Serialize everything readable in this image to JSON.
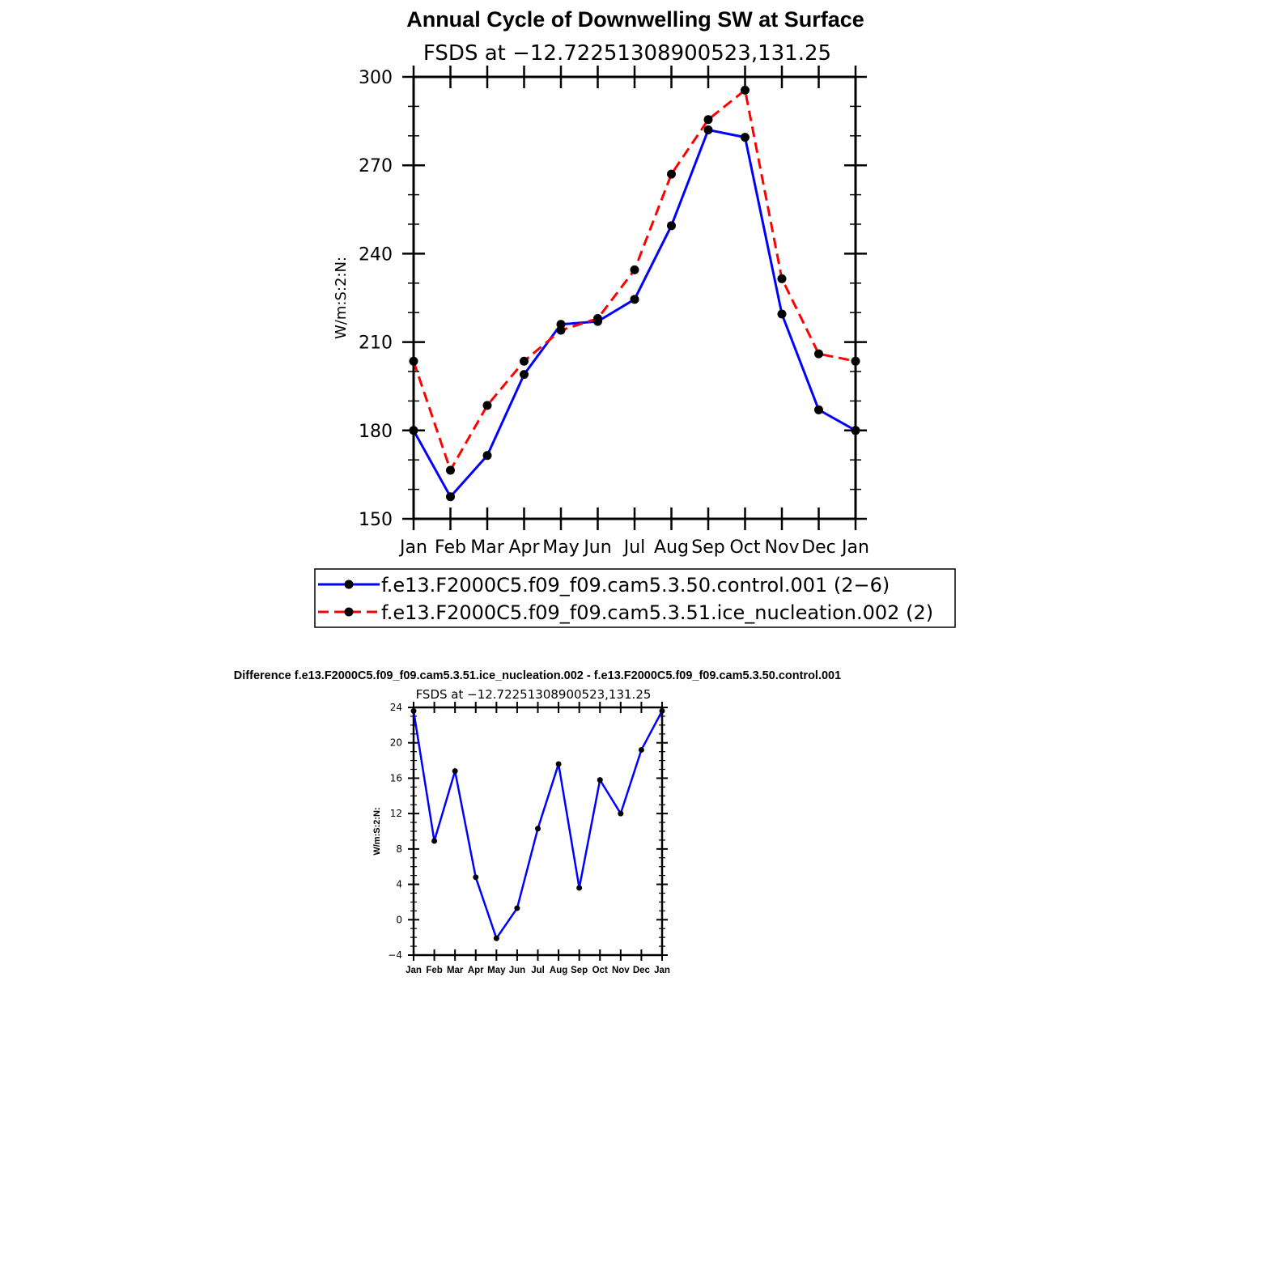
{
  "chart_data": [
    {
      "type": "line",
      "title": "Annual Cycle of Downwelling SW at Surface",
      "subtitle": "FSDS at −12.72251308900523,131.25",
      "xlabel": "",
      "ylabel": "W/m:S:2:N:",
      "categories": [
        "Jan",
        "Feb",
        "Mar",
        "Apr",
        "May",
        "Jun",
        "Jul",
        "Aug",
        "Sep",
        "Oct",
        "Nov",
        "Dec",
        "Jan"
      ],
      "ylim": [
        150,
        300
      ],
      "yticks": [
        "150",
        "180",
        "210",
        "240",
        "270",
        "300"
      ],
      "series": [
        {
          "name": "f.e13.F2000C5.f09_f09.cam5.3.50.control.001 (2−6)",
          "color": "#0000ff",
          "dash": "solid",
          "values": [
            180,
            157.5,
            171.5,
            199,
            216,
            217,
            224.5,
            249.5,
            282,
            279.5,
            219.5,
            187,
            180
          ]
        },
        {
          "name": "f.e13.F2000C5.f09_f09.cam5.3.51.ice_nucleation.002 (2)",
          "color": "#ff0000",
          "dash": "dashed",
          "values": [
            203.5,
            166.5,
            188.5,
            203.5,
            214,
            218,
            234.5,
            267,
            285.5,
            295.5,
            231.5,
            206,
            203.5
          ]
        }
      ]
    },
    {
      "type": "line",
      "title": "Difference f.e13.F2000C5.f09_f09.cam5.3.51.ice_nucleation.002 - f.e13.F2000C5.f09_f09.cam5.3.50.control.001",
      "subtitle": "FSDS at −12.72251308900523,131.25",
      "xlabel": "",
      "ylabel": "W/m:S:2:N:",
      "categories": [
        "Jan",
        "Feb",
        "Mar",
        "Apr",
        "May",
        "Jun",
        "Jul",
        "Aug",
        "Sep",
        "Oct",
        "Nov",
        "Dec",
        "Jan"
      ],
      "ylim": [
        -4,
        24
      ],
      "yticks": [
        "−4",
        "0",
        "4",
        "8",
        "12",
        "16",
        "20",
        "24"
      ],
      "series": [
        {
          "name": "difference",
          "color": "#0000ff",
          "dash": "solid",
          "values": [
            23.6,
            8.9,
            16.8,
            4.8,
            -2.1,
            1.3,
            10.3,
            17.6,
            3.6,
            15.8,
            12.0,
            19.2,
            23.6
          ]
        }
      ]
    }
  ]
}
